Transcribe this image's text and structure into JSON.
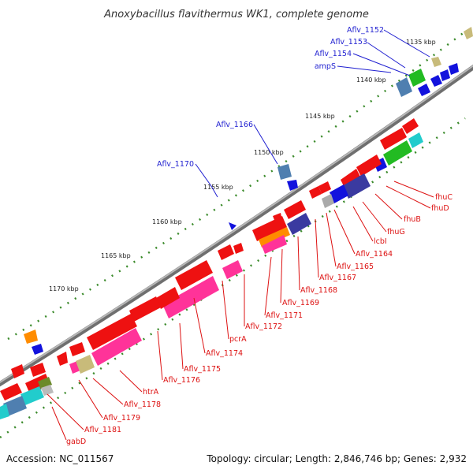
{
  "title": "Anoxybacillus flavithermus WK1, complete genome",
  "footer": {
    "accession": "Accession: NC_011567",
    "topology": "Topology: circular; Length: 2,846,746 bp; Genes: 2,932"
  },
  "ticks": [
    "1135 kbp",
    "1140 kbp",
    "1145 kbp",
    "1150 kbp",
    "1155 kbp",
    "1160 kbp",
    "1165 kbp",
    "1170 kbp"
  ],
  "colors": {
    "backbone": "#8c8c8c",
    "tick_dots": "#3a8a2a",
    "forward_label": "#1f1fd0",
    "reverse_label": "#dd1111"
  },
  "labels_forward": [
    "Aflv_1152",
    "Aflv_1153",
    "Aflv_1154",
    "ampS",
    "Aflv_1166",
    "Aflv_1170"
  ],
  "labels_reverse": [
    "fhuC",
    "fhuD",
    "fhuB",
    "fhuG",
    "lcbI",
    "Aflv_1164",
    "Aflv_1165",
    "Aflv_1167",
    "Aflv_1168",
    "Aflv_1169",
    "Aflv_1171",
    "Aflv_1172",
    "pcrA",
    "Aflv_1174",
    "Aflv_1175",
    "Aflv_1176",
    "htrA",
    "Aflv_1178",
    "Aflv_1179",
    "Aflv_1181",
    "gabD"
  ]
}
